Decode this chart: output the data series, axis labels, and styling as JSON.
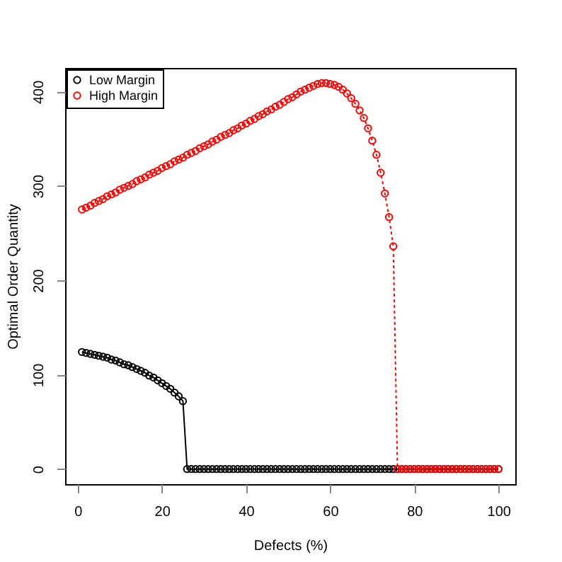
{
  "chart_data": {
    "type": "line",
    "xlabel": "Defects (%)",
    "ylabel": "Optimal Order Quantity",
    "x": [
      1,
      2,
      3,
      4,
      5,
      6,
      7,
      8,
      9,
      10,
      11,
      12,
      13,
      14,
      15,
      16,
      17,
      18,
      19,
      20,
      21,
      22,
      23,
      24,
      25,
      26,
      27,
      28,
      29,
      30,
      31,
      32,
      33,
      34,
      35,
      36,
      37,
      38,
      39,
      40,
      41,
      42,
      43,
      44,
      45,
      46,
      47,
      48,
      49,
      50,
      51,
      52,
      53,
      54,
      55,
      56,
      57,
      58,
      59,
      60,
      61,
      62,
      63,
      64,
      65,
      66,
      67,
      68,
      69,
      70,
      71,
      72,
      73,
      74,
      75,
      76,
      77,
      78,
      79,
      80,
      81,
      82,
      83,
      84,
      85,
      86,
      87,
      88,
      89,
      90,
      91,
      92,
      93,
      94,
      95,
      96,
      97,
      98,
      99,
      100
    ],
    "series": [
      {
        "name": "Low Margin",
        "color": "#000000",
        "line_style": "solid",
        "values": [
          124,
          123,
          122,
          121,
          120,
          119,
          118,
          116,
          115,
          113,
          111,
          110,
          108,
          106,
          104,
          102,
          99,
          97,
          94,
          91,
          88,
          85,
          81,
          77,
          72,
          0,
          0,
          0,
          0,
          0,
          0,
          0,
          0,
          0,
          0,
          0,
          0,
          0,
          0,
          0,
          0,
          0,
          0,
          0,
          0,
          0,
          0,
          0,
          0,
          0,
          0,
          0,
          0,
          0,
          0,
          0,
          0,
          0,
          0,
          0,
          0,
          0,
          0,
          0,
          0,
          0,
          0,
          0,
          0,
          0,
          0,
          0,
          0,
          0,
          0,
          0,
          0,
          0,
          0,
          0,
          0,
          0,
          0,
          0,
          0,
          0,
          0,
          0,
          0,
          0,
          0,
          0,
          0,
          0,
          0,
          0,
          0,
          0,
          0,
          0
        ]
      },
      {
        "name": "High Margin",
        "color": "#ff0000",
        "line_style": "dotted",
        "values": [
          275,
          277,
          279,
          282,
          284,
          286,
          289,
          291,
          293,
          296,
          298,
          300,
          302,
          305,
          307,
          309,
          312,
          314,
          316,
          319,
          321,
          323,
          326,
          328,
          330,
          333,
          335,
          337,
          340,
          342,
          344,
          347,
          349,
          352,
          354,
          356,
          359,
          361,
          364,
          366,
          369,
          371,
          374,
          376,
          379,
          381,
          384,
          386,
          389,
          392,
          394,
          397,
          400,
          402,
          404,
          406,
          408,
          409,
          409,
          408,
          407,
          405,
          402,
          398,
          393,
          387,
          380,
          372,
          361,
          348,
          333,
          314,
          292,
          267,
          236,
          0,
          0,
          0,
          0,
          0,
          0,
          0,
          0,
          0,
          0,
          0,
          0,
          0,
          0,
          0,
          0,
          0,
          0,
          0,
          0,
          0,
          0,
          0,
          0,
          0
        ]
      }
    ],
    "xlim": [
      -3,
      104
    ],
    "ylim": [
      -16,
      425
    ],
    "xticks": [
      0,
      20,
      40,
      60,
      80,
      100
    ],
    "yticks": [
      0,
      100,
      200,
      300,
      400
    ],
    "marker": "circle",
    "grid": false,
    "legend": "top left"
  }
}
